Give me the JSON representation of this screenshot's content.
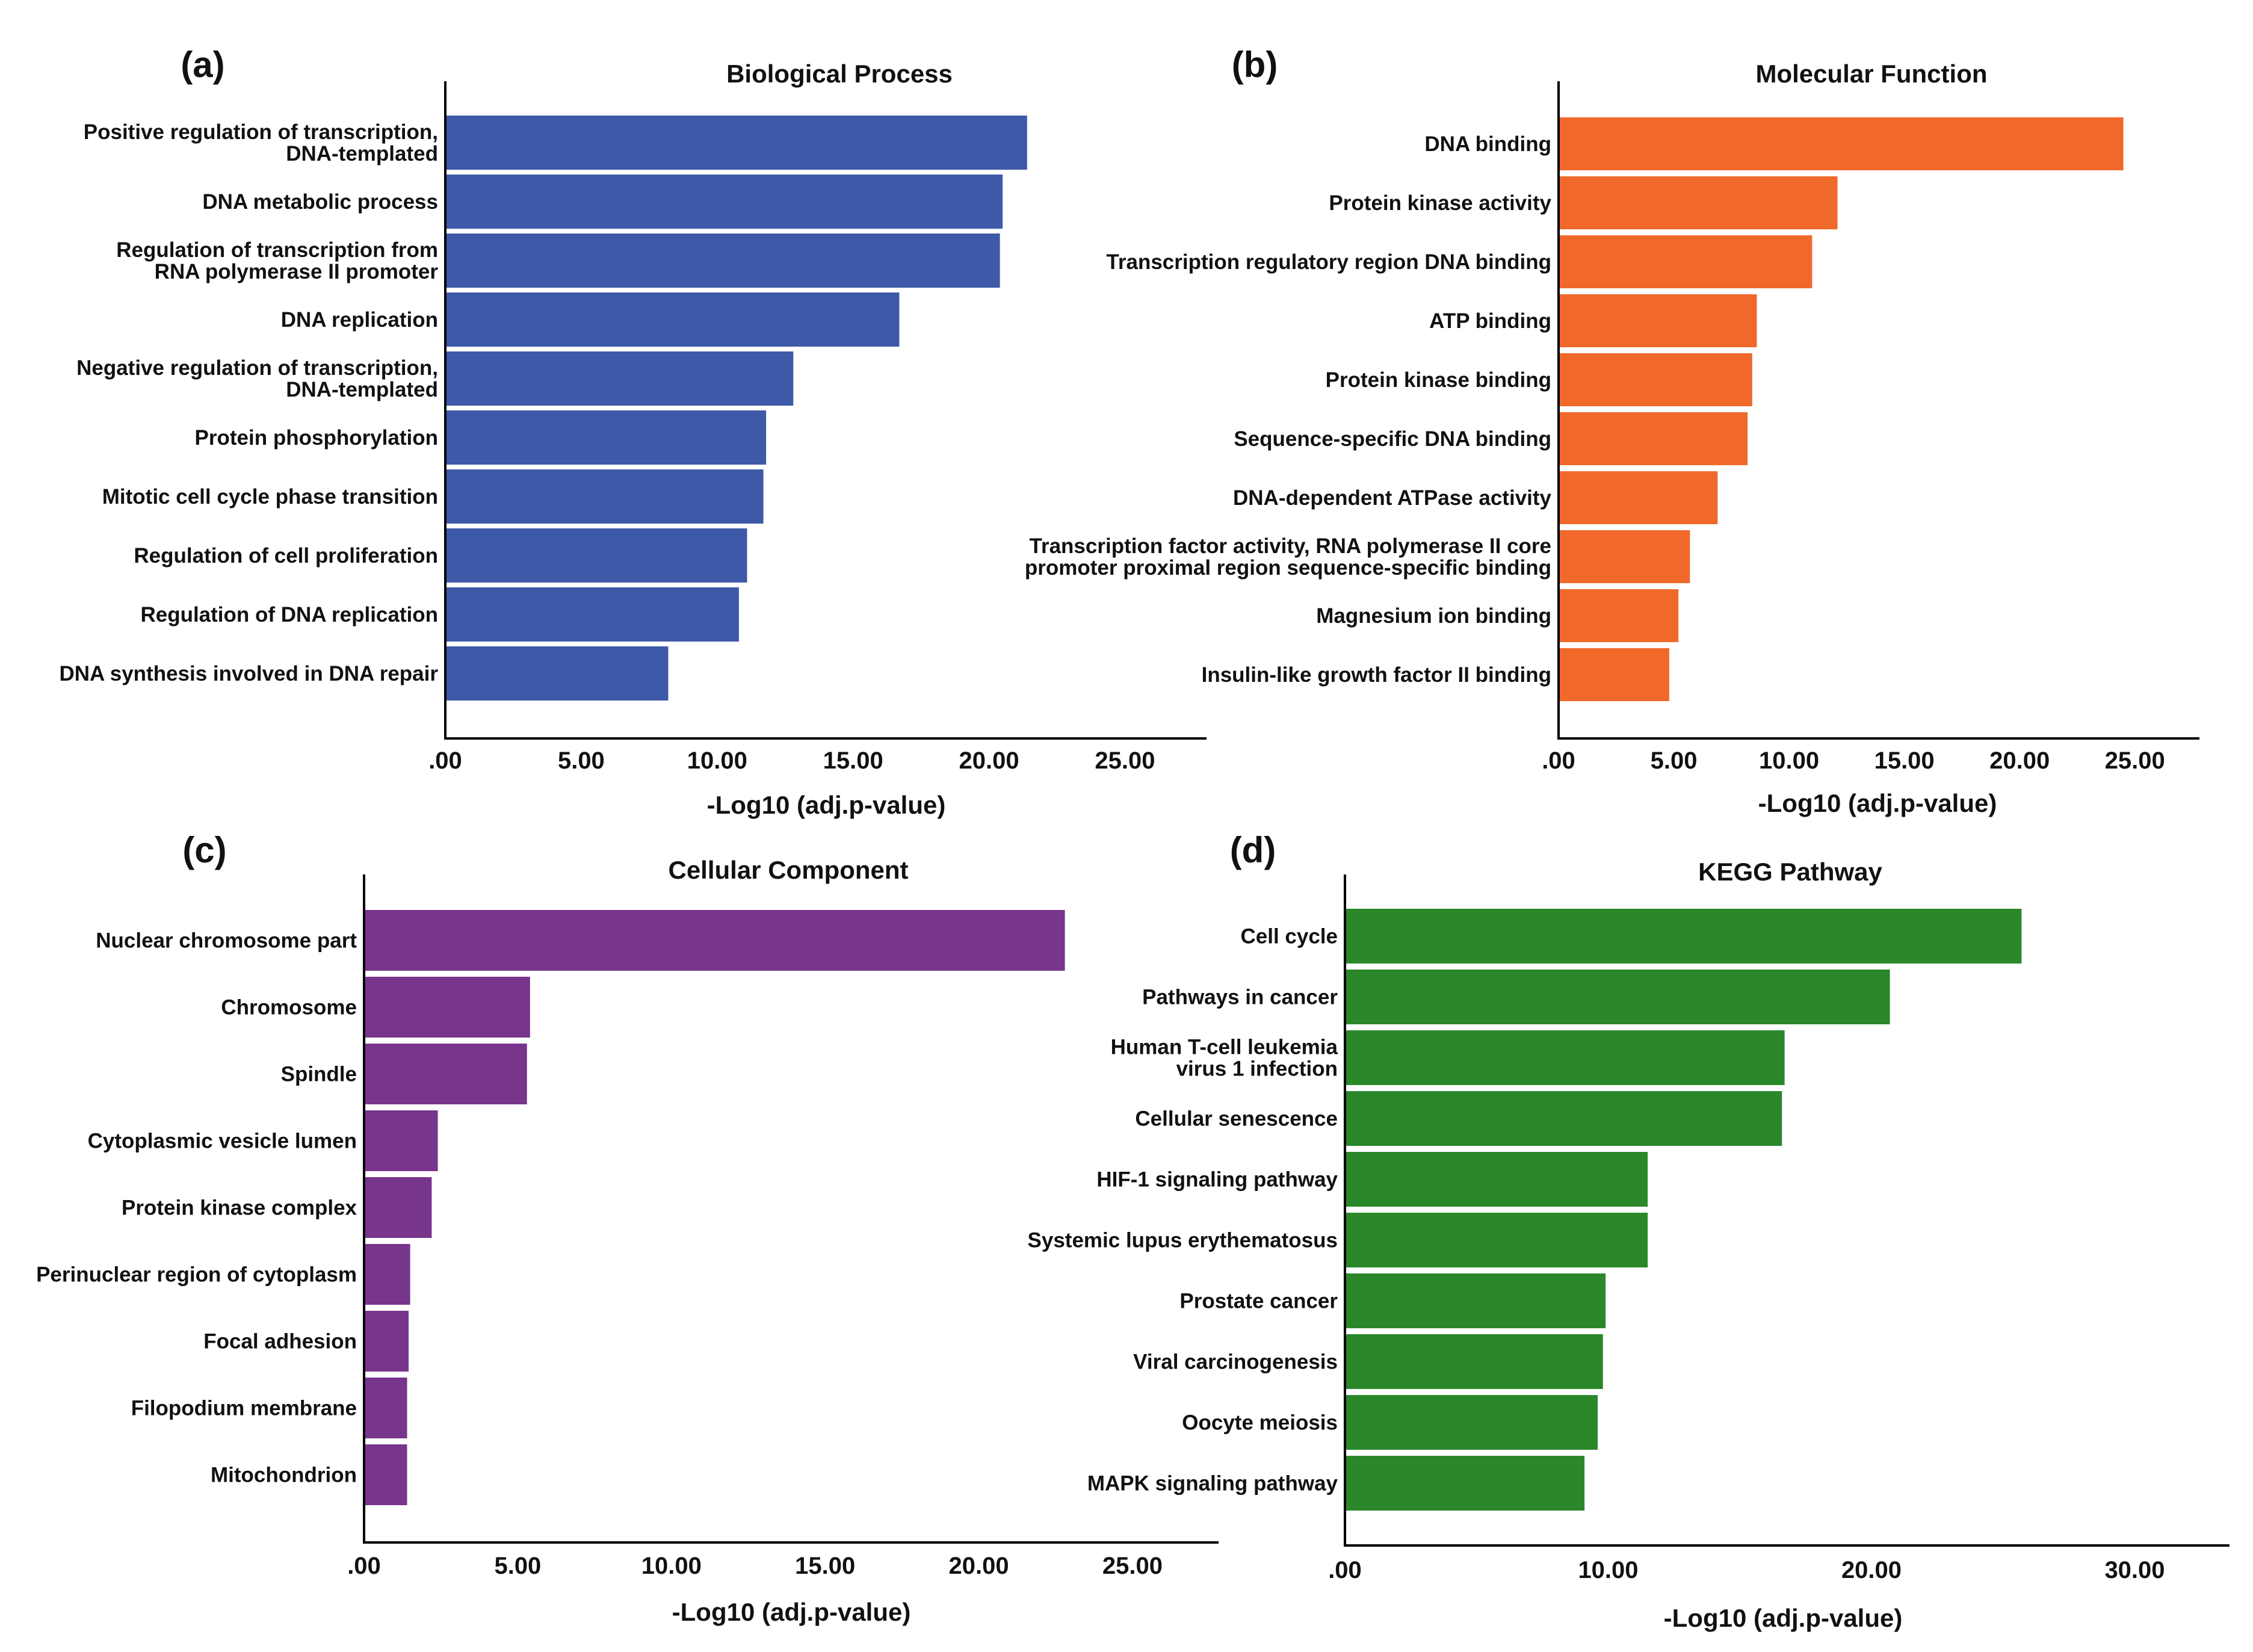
{
  "chart_data": [
    {
      "type": "bar",
      "orientation": "horizontal",
      "panel": "(a)",
      "title": "Biological Process",
      "xlabel": "-Log10 (adj.p-value)",
      "ylabel": "",
      "xlim": [
        0,
        28
      ],
      "xticks": [
        ".00",
        "5.00",
        "10.00",
        "15.00",
        "20.00",
        "25.00"
      ],
      "xtick_values": [
        0,
        5,
        10,
        15,
        20,
        25
      ],
      "color": "#3e59a8",
      "grid": false,
      "categories": [
        [
          "Positive regulation of transcription,",
          "DNA-templated"
        ],
        [
          "DNA metabolic process"
        ],
        [
          "Regulation of transcription from",
          "RNA polymerase II promoter"
        ],
        [
          "DNA replication"
        ],
        [
          "Negative regulation of transcription,",
          "DNA-templated"
        ],
        [
          "Protein phosphorylation"
        ],
        [
          "Mitotic cell cycle phase transition"
        ],
        [
          "Regulation of cell proliferation"
        ],
        [
          "Regulation of DNA replication"
        ],
        [
          "DNA synthesis involved in DNA repair"
        ]
      ],
      "values": [
        21.4,
        20.5,
        20.4,
        16.7,
        12.8,
        11.8,
        11.7,
        11.1,
        10.8,
        8.2
      ]
    },
    {
      "type": "bar",
      "orientation": "horizontal",
      "panel": "(b)",
      "title": "Molecular Function",
      "xlabel": "-Log10 (adj.p-value)",
      "ylabel": "",
      "xlim": [
        0,
        27.8
      ],
      "xticks": [
        ".00",
        "5.00",
        "10.00",
        "15.00",
        "20.00",
        "25.00"
      ],
      "xtick_values": [
        0,
        5,
        10,
        15,
        20,
        25
      ],
      "color": "#f0692b",
      "grid": false,
      "categories": [
        [
          "DNA binding"
        ],
        [
          "Protein kinase activity"
        ],
        [
          "Transcription regulatory region DNA binding"
        ],
        [
          "ATP binding"
        ],
        [
          "Protein kinase binding"
        ],
        [
          "Sequence-specific DNA binding"
        ],
        [
          "DNA-dependent ATPase activity"
        ],
        [
          "Transcription factor activity, RNA polymerase II core",
          "promoter proximal region sequence-specific binding"
        ],
        [
          "Magnesium ion binding"
        ],
        [
          "Insulin-like growth factor II binding"
        ]
      ],
      "values": [
        24.5,
        12.1,
        11.0,
        8.6,
        8.4,
        8.2,
        6.9,
        5.7,
        5.2,
        4.8
      ]
    },
    {
      "type": "bar",
      "orientation": "horizontal",
      "panel": "(c)",
      "title": "Cellular Component",
      "xlabel": "-Log10 (adj.p-value)",
      "ylabel": "",
      "xlim": [
        0,
        27.8
      ],
      "xticks": [
        ".00",
        "5.00",
        "10.00",
        "15.00",
        "20.00",
        "25.00"
      ],
      "xtick_values": [
        0,
        5,
        10,
        15,
        20,
        25
      ],
      "color": "#77358c",
      "grid": false,
      "categories": [
        [
          "Nuclear chromosome part"
        ],
        [
          "Chromosome"
        ],
        [
          "Spindle"
        ],
        [
          "Cytoplasmic vesicle lumen"
        ],
        [
          "Protein kinase complex"
        ],
        [
          "Perinuclear region of cytoplasm"
        ],
        [
          "Focal adhesion"
        ],
        [
          "Filopodium membrane"
        ],
        [
          "Mitochondrion"
        ]
      ],
      "values": [
        22.8,
        5.4,
        5.3,
        2.4,
        2.2,
        1.5,
        1.45,
        1.4,
        1.4
      ]
    },
    {
      "type": "bar",
      "orientation": "horizontal",
      "panel": "(d)",
      "title": "KEGG Pathway",
      "xlabel": "-Log10 (adj.p-value)",
      "ylabel": "",
      "xlim": [
        0,
        33.6
      ],
      "xticks": [
        ".00",
        "10.00",
        "20.00",
        "30.00"
      ],
      "xtick_values": [
        0,
        10,
        20,
        30
      ],
      "color": "#2a872a",
      "grid": false,
      "categories": [
        [
          "Cell cycle"
        ],
        [
          "Pathways in cancer"
        ],
        [
          "Human T-cell leukemia",
          "virus 1 infection"
        ],
        [
          "Cellular senescence"
        ],
        [
          "HIF-1 signaling pathway"
        ],
        [
          "Systemic lupus erythematosus"
        ],
        [
          "Prostate cancer"
        ],
        [
          "Viral carcinogenesis"
        ],
        [
          "Oocyte meiosis"
        ],
        [
          "MAPK signaling pathway"
        ]
      ],
      "values": [
        25.7,
        20.7,
        16.7,
        16.6,
        11.5,
        11.5,
        9.9,
        9.8,
        9.6,
        9.1
      ]
    }
  ]
}
